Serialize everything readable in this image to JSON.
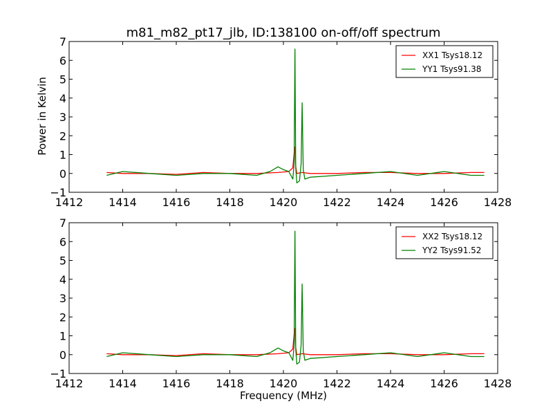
{
  "chart_data": [
    {
      "type": "line",
      "title": "m81_m82_pt17_jlb, ID:138100 on-off/off spectrum",
      "xlabel": "",
      "ylabel": "Power in Kelvin",
      "xlim": [
        1412,
        1428
      ],
      "ylim": [
        -1,
        7
      ],
      "xticks": [
        "1412",
        "1414",
        "1416",
        "1418",
        "1420",
        "1422",
        "1424",
        "1426",
        "1428"
      ],
      "yticks": [
        "−1",
        "0",
        "1",
        "2",
        "3",
        "4",
        "5",
        "6",
        "7"
      ],
      "legend_position": "top-right",
      "grid": false,
      "series": [
        {
          "name": "XX1 Tsys18.12",
          "color": "#ff0000",
          "x": [
            1413.4,
            1414,
            1415,
            1416,
            1417,
            1418,
            1419,
            1419.8,
            1420.2,
            1420.35,
            1420.42,
            1420.46,
            1420.5,
            1420.7,
            1421,
            1422,
            1423,
            1424,
            1425,
            1426,
            1427,
            1427.5
          ],
          "y": [
            0.05,
            0.0,
            0.0,
            -0.05,
            0.05,
            0.0,
            0.0,
            0.05,
            0.1,
            0.3,
            1.4,
            0.4,
            0.0,
            0.05,
            0.0,
            0.0,
            0.05,
            0.05,
            0.0,
            0.0,
            0.05,
            0.05
          ]
        },
        {
          "name": "YY1 Tsys91.38",
          "color": "#008000",
          "x": [
            1413.4,
            1414,
            1415,
            1416,
            1417,
            1418,
            1419,
            1419.5,
            1419.8,
            1420.0,
            1420.2,
            1420.35,
            1420.4,
            1420.43,
            1420.46,
            1420.5,
            1420.6,
            1420.66,
            1420.7,
            1420.74,
            1420.8,
            1421,
            1422,
            1423,
            1424,
            1425,
            1426,
            1427,
            1427.5
          ],
          "y": [
            -0.1,
            0.1,
            0.0,
            -0.1,
            0.0,
            0.0,
            -0.1,
            0.1,
            0.35,
            0.2,
            0.1,
            -0.3,
            0.5,
            6.6,
            0.3,
            -0.5,
            -0.4,
            0.5,
            3.75,
            0.2,
            -0.3,
            -0.2,
            -0.1,
            0.0,
            0.1,
            -0.1,
            0.1,
            -0.1,
            -0.1
          ]
        }
      ]
    },
    {
      "type": "line",
      "title": "",
      "xlabel": "Frequency (MHz)",
      "ylabel": "",
      "xlim": [
        1412,
        1428
      ],
      "ylim": [
        -1,
        7
      ],
      "xticks": [
        "1412",
        "1414",
        "1416",
        "1418",
        "1420",
        "1422",
        "1424",
        "1426",
        "1428"
      ],
      "yticks": [
        "−1",
        "0",
        "1",
        "2",
        "3",
        "4",
        "5",
        "6",
        "7"
      ],
      "legend_position": "top-right",
      "grid": false,
      "series": [
        {
          "name": "XX2 Tsys18.12",
          "color": "#ff0000",
          "x": [
            1413.4,
            1414,
            1415,
            1416,
            1417,
            1418,
            1419,
            1419.8,
            1420.2,
            1420.35,
            1420.42,
            1420.46,
            1420.5,
            1420.7,
            1421,
            1422,
            1423,
            1424,
            1425,
            1426,
            1427,
            1427.5
          ],
          "y": [
            0.05,
            0.0,
            0.0,
            -0.05,
            0.05,
            0.0,
            0.0,
            0.05,
            0.1,
            0.3,
            1.4,
            0.4,
            0.0,
            0.05,
            0.0,
            0.0,
            0.05,
            0.05,
            0.0,
            0.0,
            0.05,
            0.05
          ]
        },
        {
          "name": "YY2 Tsys91.52",
          "color": "#008000",
          "x": [
            1413.4,
            1414,
            1415,
            1416,
            1417,
            1418,
            1419,
            1419.5,
            1419.8,
            1420.0,
            1420.2,
            1420.35,
            1420.4,
            1420.43,
            1420.46,
            1420.5,
            1420.6,
            1420.66,
            1420.7,
            1420.74,
            1420.8,
            1421,
            1422,
            1423,
            1424,
            1425,
            1426,
            1427,
            1427.5
          ],
          "y": [
            -0.1,
            0.1,
            0.0,
            -0.1,
            0.0,
            0.0,
            -0.1,
            0.1,
            0.35,
            0.2,
            0.1,
            -0.3,
            0.5,
            6.55,
            0.3,
            -0.5,
            -0.4,
            0.5,
            3.75,
            0.2,
            -0.3,
            -0.2,
            -0.1,
            0.0,
            0.1,
            -0.1,
            0.1,
            -0.1,
            -0.1
          ]
        }
      ]
    }
  ]
}
